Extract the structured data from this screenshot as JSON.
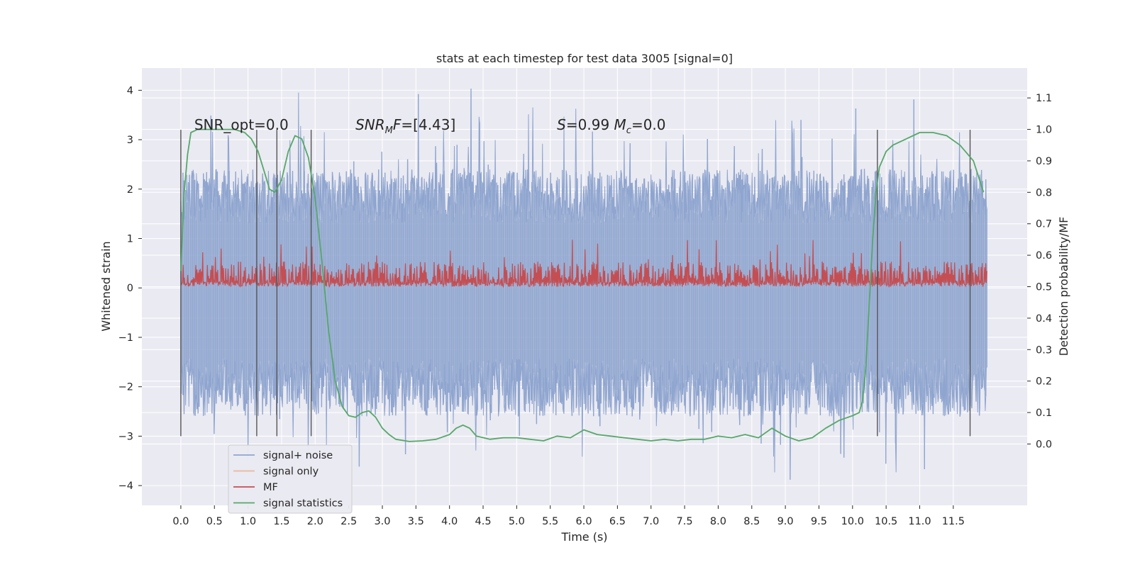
{
  "chart_data": {
    "type": "line",
    "title": "stats at each timestep for test data 3005 [signal=0]",
    "xlabel": "Time (s)",
    "ylabel_left": "Whitened strain",
    "ylabel_right": "Detection probability/MF",
    "xlim": [
      -0.58,
      12.6
    ],
    "ylim_left": [
      -4.4,
      4.45
    ],
    "ylim_right": [
      -0.195,
      1.195
    ],
    "xticks": [
      0.0,
      0.5,
      1.0,
      1.5,
      2.0,
      2.5,
      3.0,
      3.5,
      4.0,
      4.5,
      5.0,
      5.5,
      6.0,
      6.5,
      7.0,
      7.5,
      8.0,
      8.5,
      9.0,
      9.5,
      10.0,
      10.5,
      11.0,
      11.5
    ],
    "xtick_labels": [
      "0.0",
      "0.5",
      "1.0",
      "1.5",
      "2.0",
      "2.5",
      "3.0",
      "3.5",
      "4.0",
      "4.5",
      "5.0",
      "5.5",
      "6.0",
      "6.5",
      "7.0",
      "7.5",
      "8.0",
      "8.5",
      "9.0",
      "9.5",
      "10.0",
      "10.5",
      "11.0",
      "11.5"
    ],
    "yticks_left": [
      -4,
      -3,
      -2,
      -1,
      0,
      1,
      2,
      3,
      4
    ],
    "ytick_labels_left": [
      "−4",
      "−3",
      "−2",
      "−1",
      "0",
      "1",
      "2",
      "3",
      "4"
    ],
    "yticks_right": [
      0.0,
      0.1,
      0.2,
      0.3,
      0.4,
      0.5,
      0.6,
      0.7,
      0.8,
      0.9,
      1.0,
      1.1
    ],
    "ytick_labels_right": [
      "0.0",
      "0.1",
      "0.2",
      "0.3",
      "0.4",
      "0.5",
      "0.6",
      "0.7",
      "0.8",
      "0.9",
      "1.0",
      "1.1"
    ],
    "grid": true,
    "legend_position": "lower-left",
    "legend": [
      {
        "label": "signal+ noise",
        "color": "#8fa5cf"
      },
      {
        "label": "signal only",
        "color": "#eab79c"
      },
      {
        "label": "MF",
        "color": "#c44e52"
      },
      {
        "label": "signal statistics",
        "color": "#55a868"
      }
    ],
    "annotations": [
      {
        "text": "SNR_opt=0.0",
        "x": 0.2,
        "y": 3.3
      },
      {
        "text": "SNR_MF=[4.43]",
        "x": 2.6,
        "y": 3.3
      },
      {
        "text": "S=0.99   M_c=0.0",
        "x": 5.6,
        "y": 3.3
      }
    ],
    "noise_series": {
      "name": "signal+ noise",
      "x_range": [
        0.0,
        12.0
      ],
      "envelope_upper": 2.4,
      "envelope_lower": -2.6,
      "peak_max": 4.1,
      "peak_min": -3.9,
      "color": "#8fa5cf"
    },
    "mf_series": {
      "name": "MF",
      "axis": "right",
      "x_range": [
        0.0,
        12.0
      ],
      "baseline": 0.5,
      "typical_max": 0.58,
      "peak_max": 0.65,
      "color": "#c44e52"
    },
    "stat_series": {
      "name": "signal statistics",
      "axis": "right",
      "color": "#55a868",
      "x": [
        0.0,
        0.05,
        0.1,
        0.15,
        0.25,
        0.4,
        0.6,
        0.8,
        0.95,
        1.05,
        1.15,
        1.25,
        1.32,
        1.4,
        1.5,
        1.6,
        1.7,
        1.8,
        1.9,
        2.0,
        2.1,
        2.2,
        2.3,
        2.4,
        2.5,
        2.6,
        2.7,
        2.8,
        2.9,
        3.0,
        3.1,
        3.2,
        3.4,
        3.6,
        3.8,
        4.0,
        4.1,
        4.2,
        4.3,
        4.4,
        4.6,
        4.8,
        5.0,
        5.2,
        5.4,
        5.6,
        5.8,
        6.0,
        6.2,
        6.4,
        6.6,
        6.8,
        7.0,
        7.2,
        7.4,
        7.6,
        7.8,
        8.0,
        8.2,
        8.4,
        8.6,
        8.8,
        9.0,
        9.2,
        9.4,
        9.6,
        9.8,
        10.0,
        10.1,
        10.15,
        10.2,
        10.25,
        10.3,
        10.35,
        10.4,
        10.5,
        10.6,
        10.8,
        11.0,
        11.2,
        11.4,
        11.6,
        11.8,
        11.95
      ],
      "y": [
        0.55,
        0.8,
        0.92,
        0.99,
        1.0,
        1.0,
        1.0,
        1.0,
        0.99,
        0.97,
        0.93,
        0.86,
        0.81,
        0.8,
        0.84,
        0.93,
        0.98,
        0.97,
        0.91,
        0.78,
        0.58,
        0.36,
        0.2,
        0.12,
        0.09,
        0.085,
        0.1,
        0.105,
        0.085,
        0.05,
        0.03,
        0.015,
        0.008,
        0.01,
        0.015,
        0.03,
        0.05,
        0.06,
        0.05,
        0.025,
        0.015,
        0.02,
        0.02,
        0.015,
        0.01,
        0.025,
        0.02,
        0.045,
        0.03,
        0.025,
        0.02,
        0.015,
        0.01,
        0.015,
        0.01,
        0.015,
        0.015,
        0.025,
        0.02,
        0.03,
        0.02,
        0.05,
        0.025,
        0.01,
        0.02,
        0.05,
        0.075,
        0.09,
        0.1,
        0.14,
        0.25,
        0.45,
        0.65,
        0.8,
        0.88,
        0.93,
        0.95,
        0.97,
        0.99,
        0.99,
        0.98,
        0.95,
        0.9,
        0.8
      ]
    },
    "vertical_lines": {
      "x": [
        0.0,
        1.13,
        1.43,
        1.94,
        10.37,
        11.75
      ],
      "y_range": [
        -3.0,
        3.2
      ],
      "color": "#555555"
    }
  }
}
